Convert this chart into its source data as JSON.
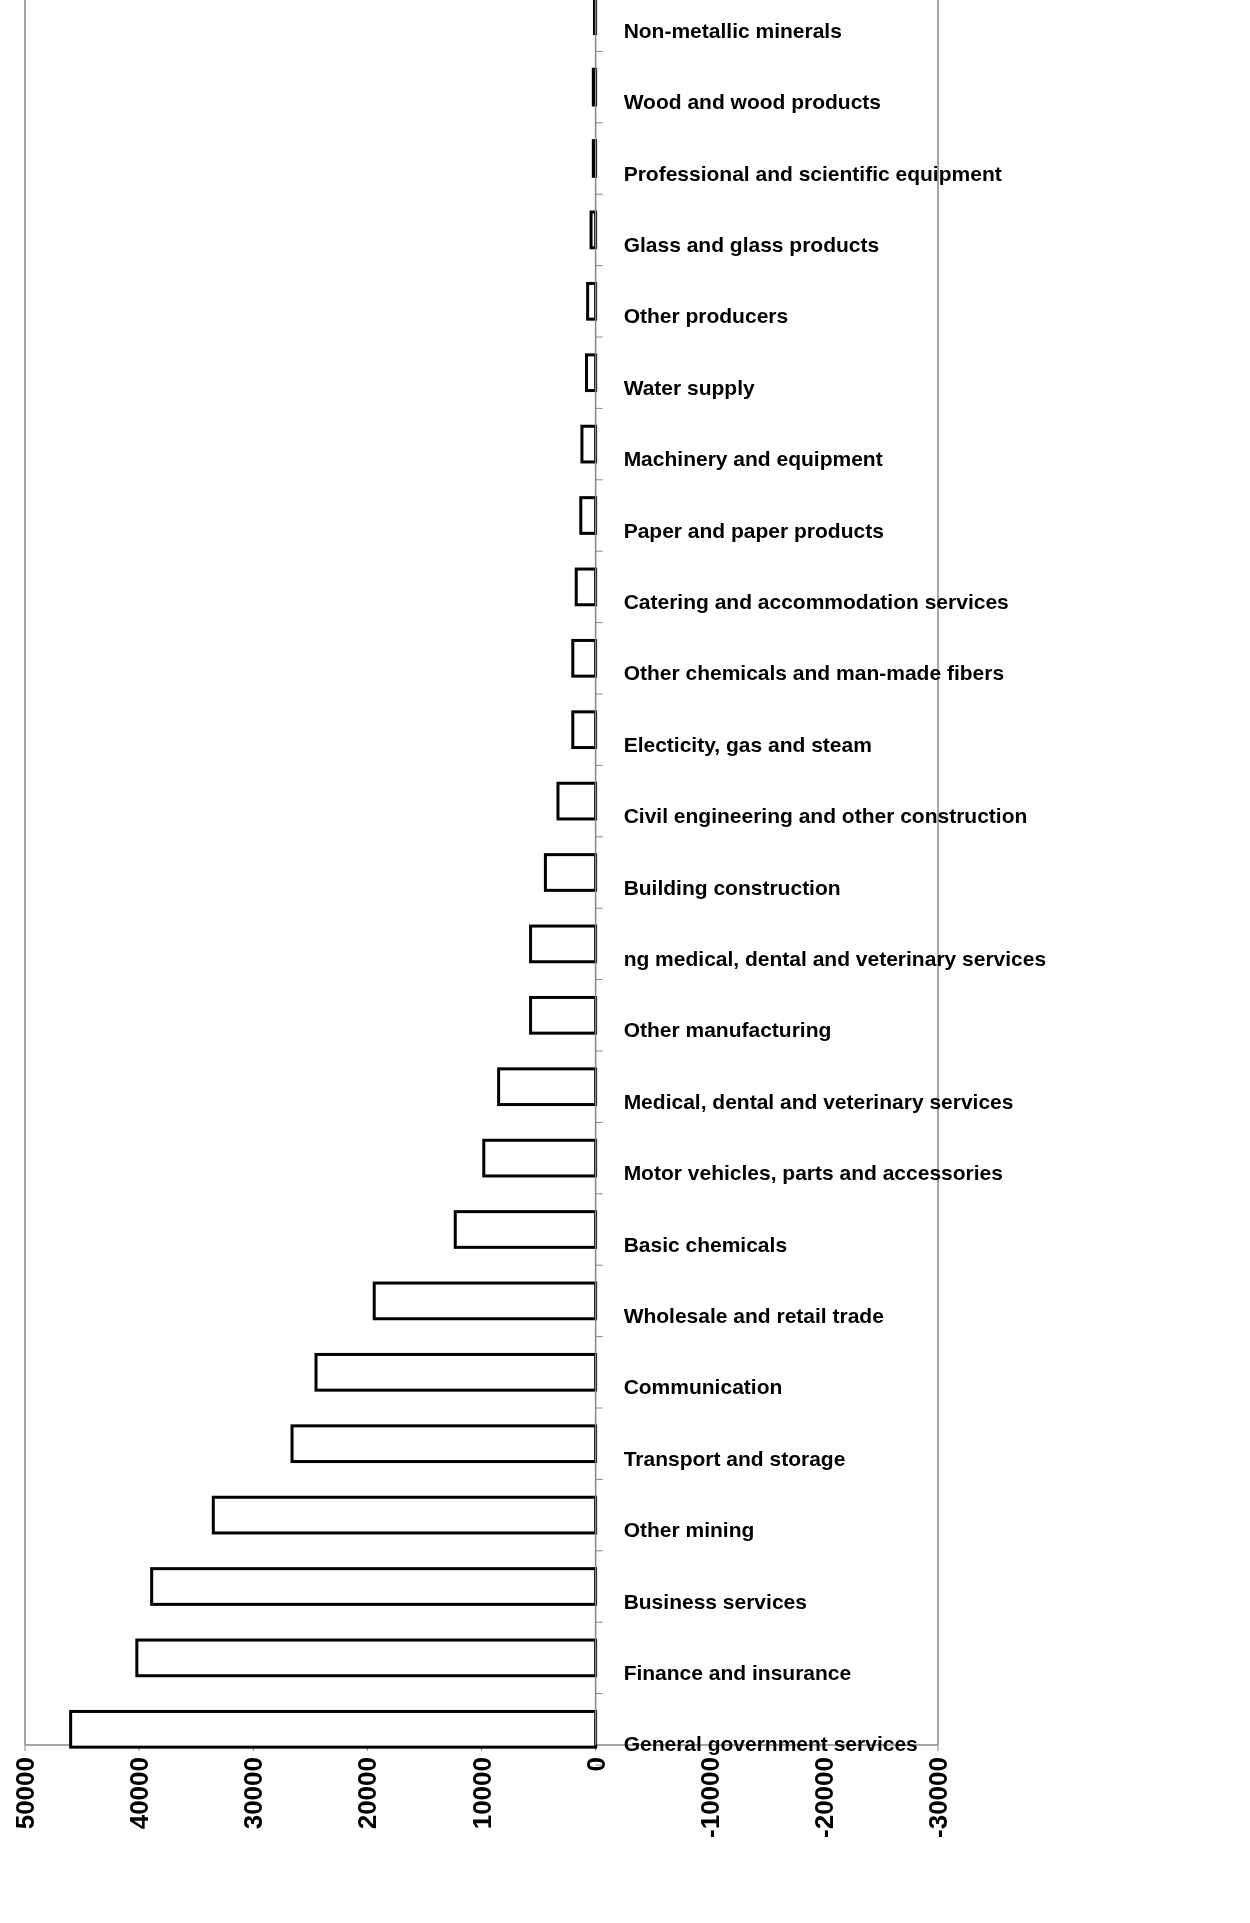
{
  "chart_data": {
    "type": "bar",
    "orientation": "horizontal",
    "color": "#ffffff",
    "categories": [
      "Non-metallic minerals",
      "Wood and wood products",
      "Professional and scientific equipment",
      "Glass and glass products",
      "Other producers",
      "Water supply",
      "Machinery and equipment",
      "Paper and paper products",
      "Catering and accommodation services",
      "Other chemicals and man-made fibers",
      "Electicity, gas and steam",
      "Civil engineering and other construction",
      "Building construction",
      "ng medical, dental and veterinary services",
      "Other manufacturing",
      "Medical, dental and veterinary services",
      "Motor vehicles, parts and accessories",
      "Basic chemicals",
      "Wholesale and retail trade",
      "Communication",
      "Transport and storage",
      "Other mining",
      "Business services",
      "Finance and insurance",
      "General government services"
    ],
    "values": [
      100,
      200,
      200,
      400,
      700,
      800,
      1200,
      1300,
      1700,
      2000,
      2000,
      3300,
      4400,
      5700,
      5700,
      8500,
      9800,
      12300,
      19400,
      24500,
      26600,
      33500,
      38900,
      40200,
      46000
    ],
    "xlim": [
      50000,
      -30000
    ],
    "xticks": [
      50000,
      40000,
      30000,
      20000,
      10000,
      0,
      -10000,
      -20000,
      -30000
    ],
    "tick_labels": "x"
  }
}
